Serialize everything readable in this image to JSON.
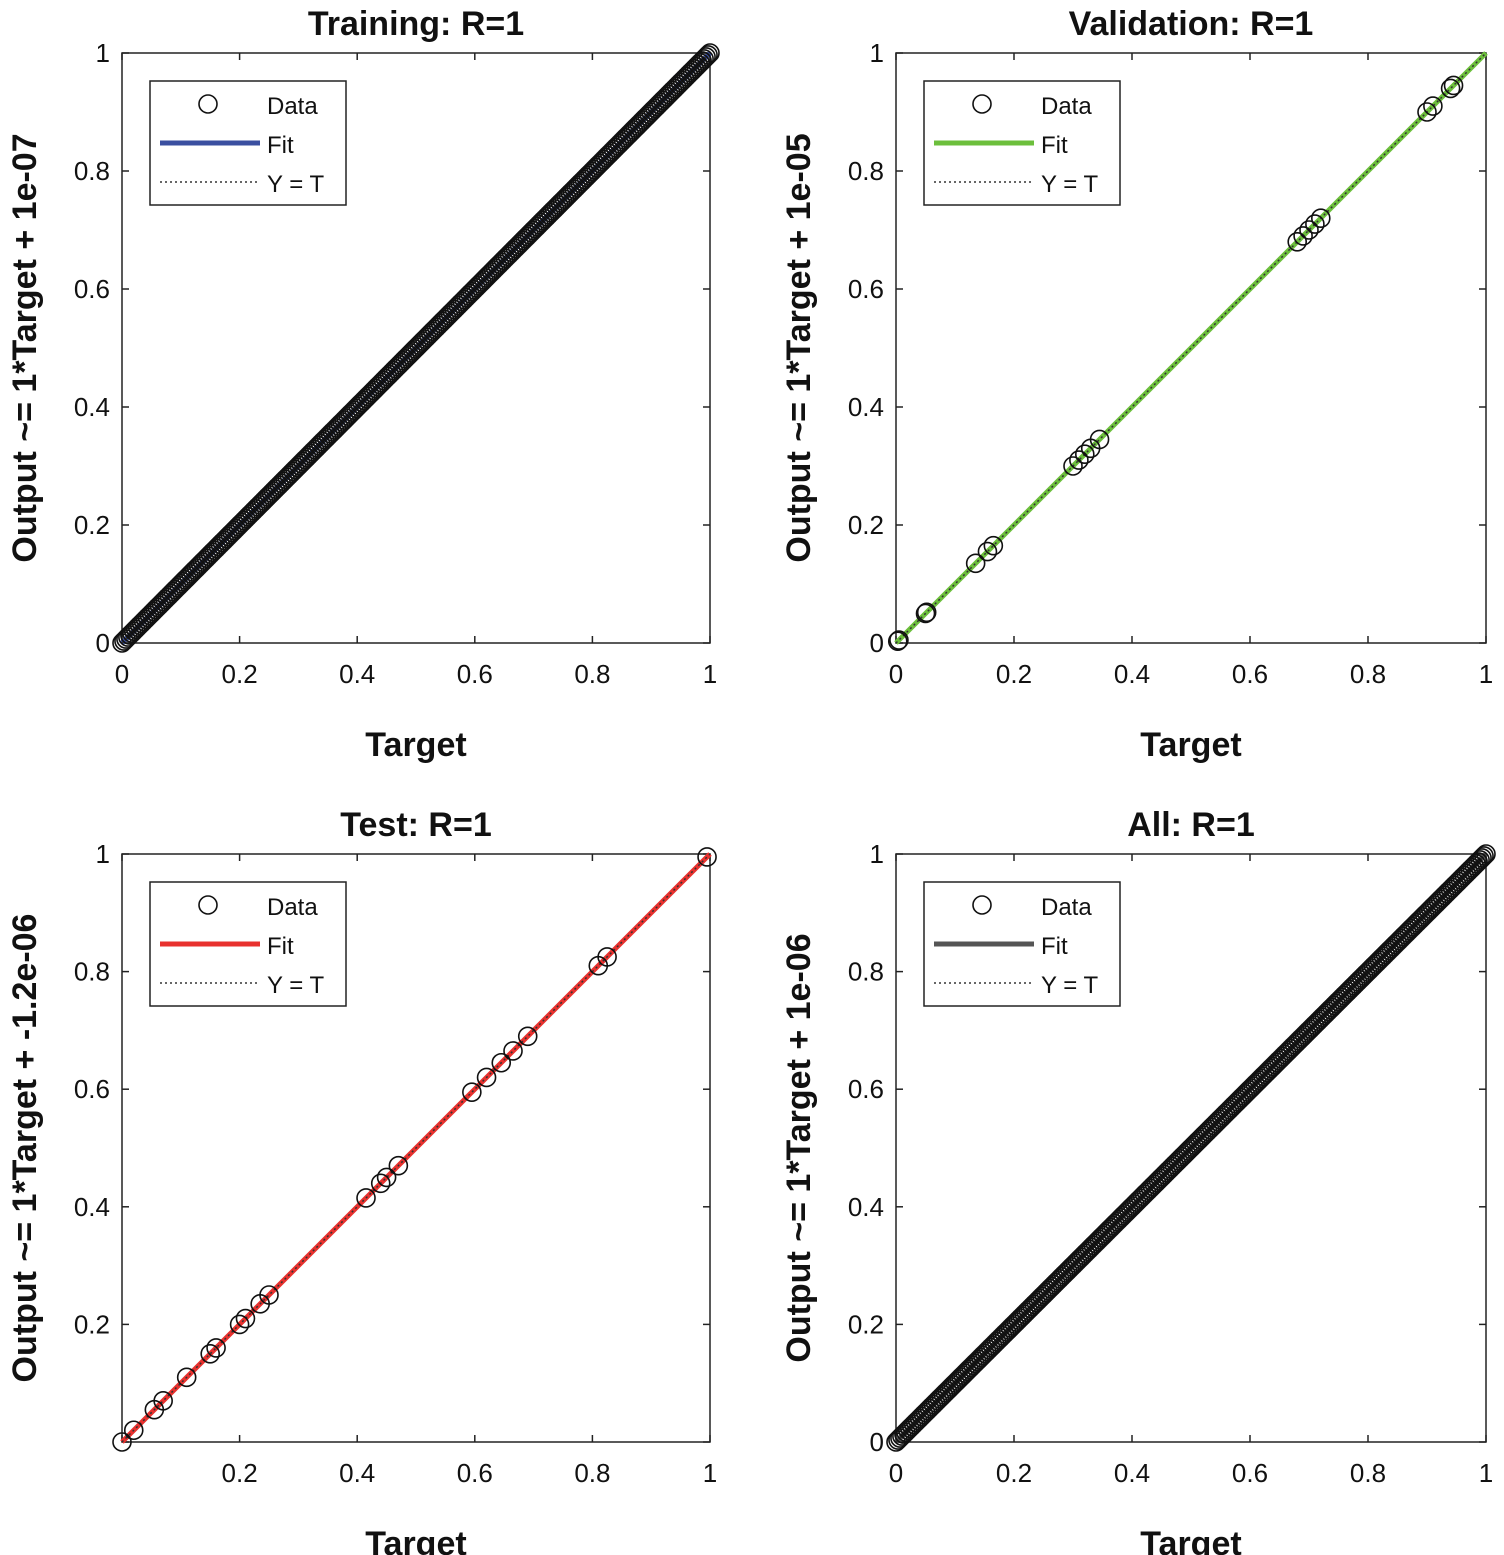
{
  "chart_data": [
    {
      "type": "scatter",
      "title": "Training: R=1",
      "xlabel": "Target",
      "ylabel": "Output ~= 1*Target + 1e-07",
      "xlim": [
        0,
        1
      ],
      "ylim": [
        0,
        1
      ],
      "xticks": [
        "0",
        "0.2",
        "0.4",
        "0.6",
        "0.8",
        "1"
      ],
      "yticks": [
        "0",
        "0.2",
        "0.4",
        "0.6",
        "0.8",
        "1"
      ],
      "fit_color": "#3a4fa0",
      "fit": {
        "slope": 1,
        "intercept": 1e-07
      },
      "legend": {
        "location": "top-left",
        "entries": [
          "Data",
          "Fit",
          "Y = T"
        ]
      },
      "grid": false,
      "points": {
        "x_from": 0,
        "x_to": 1,
        "count": 300,
        "dense": true
      }
    },
    {
      "type": "scatter",
      "title": "Validation: R=1",
      "xlabel": "Target",
      "ylabel": "Output ~= 1*Target + 1e-05",
      "xlim": [
        0,
        1
      ],
      "ylim": [
        0,
        1
      ],
      "xticks": [
        "0",
        "0.2",
        "0.4",
        "0.6",
        "0.8",
        "1"
      ],
      "yticks": [
        "0",
        "0.2",
        "0.4",
        "0.6",
        "0.8",
        "1"
      ],
      "fit_color": "#6cbf3c",
      "fit": {
        "slope": 1,
        "intercept": 1e-05
      },
      "legend": {
        "location": "top-left",
        "entries": [
          "Data",
          "Fit",
          "Y = T"
        ]
      },
      "grid": false,
      "x": [
        0.003,
        0.005,
        0.05,
        0.052,
        0.135,
        0.155,
        0.165,
        0.3,
        0.31,
        0.32,
        0.33,
        0.345,
        0.68,
        0.69,
        0.7,
        0.71,
        0.72,
        0.9,
        0.91,
        0.94,
        0.945
      ],
      "y": [
        0.003,
        0.005,
        0.05,
        0.052,
        0.135,
        0.155,
        0.165,
        0.3,
        0.31,
        0.32,
        0.33,
        0.345,
        0.68,
        0.69,
        0.7,
        0.71,
        0.72,
        0.9,
        0.91,
        0.94,
        0.945
      ]
    },
    {
      "type": "scatter",
      "title": "Test: R=1",
      "xlabel": "Target",
      "ylabel": "Output ~= 1*Target + -1.2e-06",
      "xlim": [
        0,
        1
      ],
      "ylim": [
        0,
        1
      ],
      "xticks": [
        "",
        "0.2",
        "0.4",
        "0.6",
        "0.8",
        "1"
      ],
      "yticks": [
        "",
        "0.2",
        "0.4",
        "0.6",
        "0.8",
        "1"
      ],
      "fit_color": "#e8312e",
      "fit": {
        "slope": 1,
        "intercept": -1.2e-06
      },
      "legend": {
        "location": "top-left",
        "entries": [
          "Data",
          "Fit",
          "Y = T"
        ]
      },
      "grid": false,
      "x": [
        0.0,
        0.02,
        0.055,
        0.07,
        0.11,
        0.15,
        0.16,
        0.2,
        0.21,
        0.235,
        0.25,
        0.415,
        0.44,
        0.45,
        0.47,
        0.595,
        0.62,
        0.645,
        0.665,
        0.69,
        0.81,
        0.825,
        0.995
      ],
      "y": [
        0.0,
        0.02,
        0.055,
        0.07,
        0.11,
        0.15,
        0.16,
        0.2,
        0.21,
        0.235,
        0.25,
        0.415,
        0.44,
        0.45,
        0.47,
        0.595,
        0.62,
        0.645,
        0.665,
        0.69,
        0.81,
        0.825,
        0.995
      ]
    },
    {
      "type": "scatter",
      "title": "All: R=1",
      "xlabel": "Target",
      "ylabel": "Output ~= 1*Target + 1e-06",
      "xlim": [
        0,
        1
      ],
      "ylim": [
        0,
        1
      ],
      "xticks": [
        "0",
        "0.2",
        "0.4",
        "0.6",
        "0.8",
        "1"
      ],
      "yticks": [
        "0",
        "0.2",
        "0.4",
        "0.6",
        "0.8",
        "1"
      ],
      "fit_color": "#555555",
      "fit": {
        "slope": 1,
        "intercept": 1e-06
      },
      "legend": {
        "location": "top-left",
        "entries": [
          "Data",
          "Fit",
          "Y = T"
        ]
      },
      "grid": false,
      "points": {
        "x_from": 0,
        "x_to": 1,
        "count": 300,
        "dense": true
      }
    }
  ]
}
